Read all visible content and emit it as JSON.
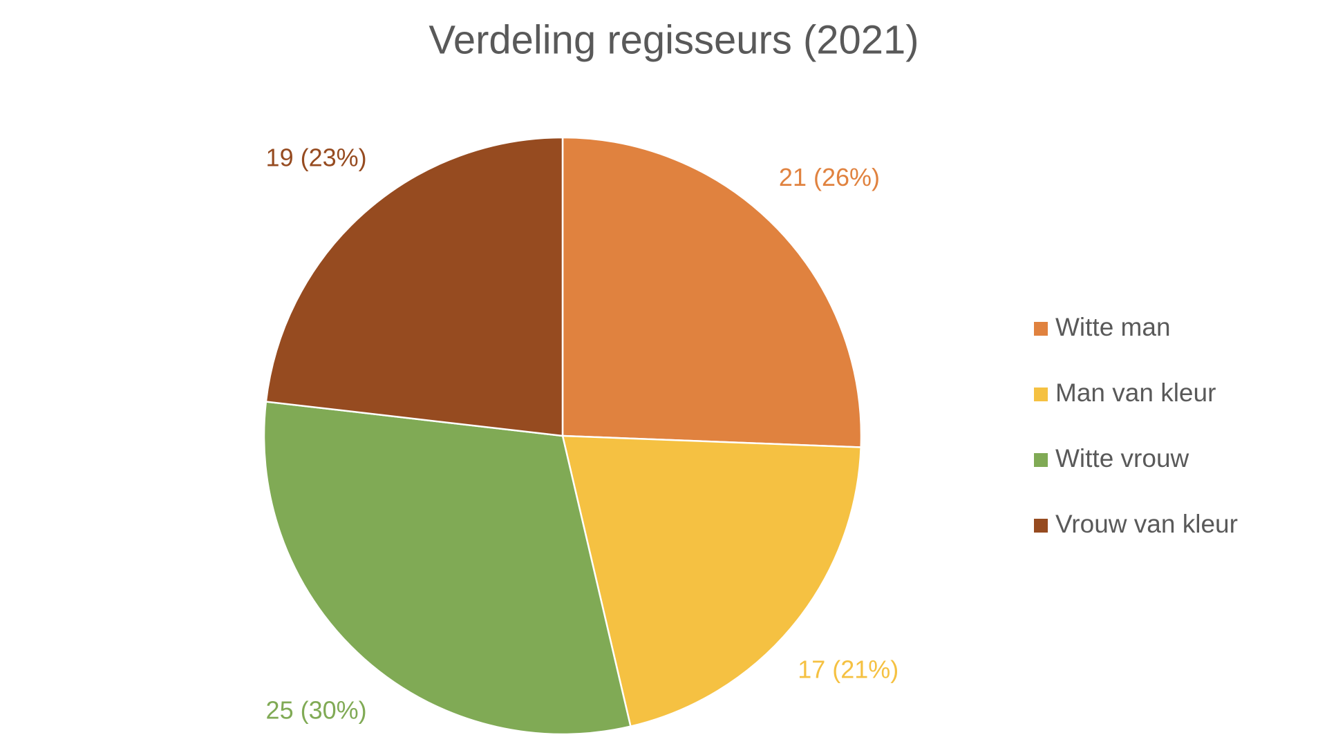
{
  "chart_data": {
    "type": "pie",
    "title": "Verdeling regisseurs (2021)",
    "categories": [
      "Witte man",
      "Man van kleur",
      "Witte vrouw",
      "Vrouw van kleur"
    ],
    "values": [
      21,
      17,
      25,
      19
    ],
    "value_labels": [
      "21 (26%)",
      "17 (21%)",
      "25 (30%)",
      "19 (23%)"
    ],
    "colors": [
      "#E0823F",
      "#F5C142",
      "#80AA55",
      "#964B20"
    ],
    "legend": "right"
  }
}
